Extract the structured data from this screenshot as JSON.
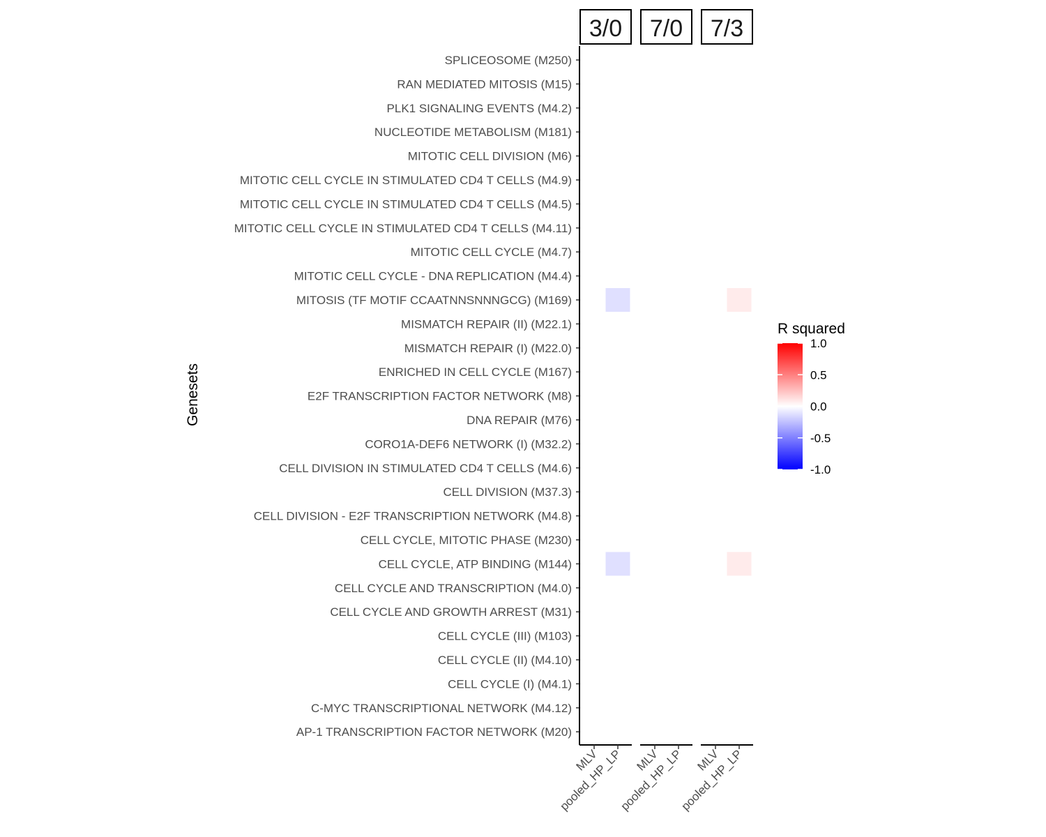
{
  "chart_data": {
    "type": "heatmap",
    "ylabel": "Genesets",
    "xlabel": "",
    "facets": [
      "3/0",
      "7/0",
      "7/3"
    ],
    "columns": [
      "MLV",
      "pooled_HP_LP"
    ],
    "genesets": [
      "SPLICEOSOME (M250)",
      "RAN MEDIATED MITOSIS (M15)",
      "PLK1 SIGNALING EVENTS (M4.2)",
      "NUCLEOTIDE METABOLISM (M181)",
      "MITOTIC CELL DIVISION (M6)",
      "MITOTIC CELL CYCLE IN STIMULATED CD4 T CELLS (M4.9)",
      "MITOTIC CELL CYCLE IN STIMULATED CD4 T CELLS (M4.5)",
      "MITOTIC CELL CYCLE IN STIMULATED CD4 T CELLS (M4.11)",
      "MITOTIC CELL CYCLE (M4.7)",
      "MITOTIC CELL CYCLE - DNA REPLICATION (M4.4)",
      "MITOSIS (TF MOTIF CCAATNNSNNNGCG) (M169)",
      "MISMATCH REPAIR (II) (M22.1)",
      "MISMATCH REPAIR (I) (M22.0)",
      "ENRICHED IN CELL CYCLE (M167)",
      "E2F TRANSCRIPTION FACTOR NETWORK (M8)",
      "DNA REPAIR (M76)",
      "CORO1A-DEF6 NETWORK (I) (M32.2)",
      "CELL DIVISION IN STIMULATED CD4 T CELLS (M4.6)",
      "CELL DIVISION (M37.3)",
      "CELL DIVISION - E2F TRANSCRIPTION NETWORK (M4.8)",
      "CELL CYCLE, MITOTIC PHASE (M230)",
      "CELL CYCLE, ATP BINDING (M144)",
      "CELL CYCLE AND TRANSCRIPTION (M4.0)",
      "CELL CYCLE AND GROWTH ARREST (M31)",
      "CELL CYCLE (III) (M103)",
      "CELL CYCLE (II) (M4.10)",
      "CELL CYCLE (I) (M4.1)",
      "C-MYC TRANSCRIPTIONAL NETWORK (M4.12)",
      "AP-1 TRANSCRIPTION FACTOR NETWORK (M20)"
    ],
    "cells": [
      {
        "facet": "3/0",
        "column": "pooled_HP_LP",
        "geneset": "MITOSIS (TF MOTIF CCAATNNSNNNGCG) (M169)",
        "value": -0.12
      },
      {
        "facet": "7/3",
        "column": "pooled_HP_LP",
        "geneset": "MITOSIS (TF MOTIF CCAATNNSNNNGCG) (M169)",
        "value": 0.08
      },
      {
        "facet": "3/0",
        "column": "pooled_HP_LP",
        "geneset": "CELL CYCLE, ATP BINDING (M144)",
        "value": -0.12
      },
      {
        "facet": "7/3",
        "column": "pooled_HP_LP",
        "geneset": "CELL CYCLE, ATP BINDING (M144)",
        "value": 0.08
      }
    ],
    "legend": {
      "title": "R squared",
      "ticks": [
        "1.0",
        "0.5",
        "0.0",
        "-0.5",
        "-1.0"
      ],
      "range": [
        -1.0,
        1.0
      ],
      "low_color": "#0000ff",
      "mid_color": "#ffffff",
      "high_color": "#ff0000",
      "placement": "right"
    }
  }
}
